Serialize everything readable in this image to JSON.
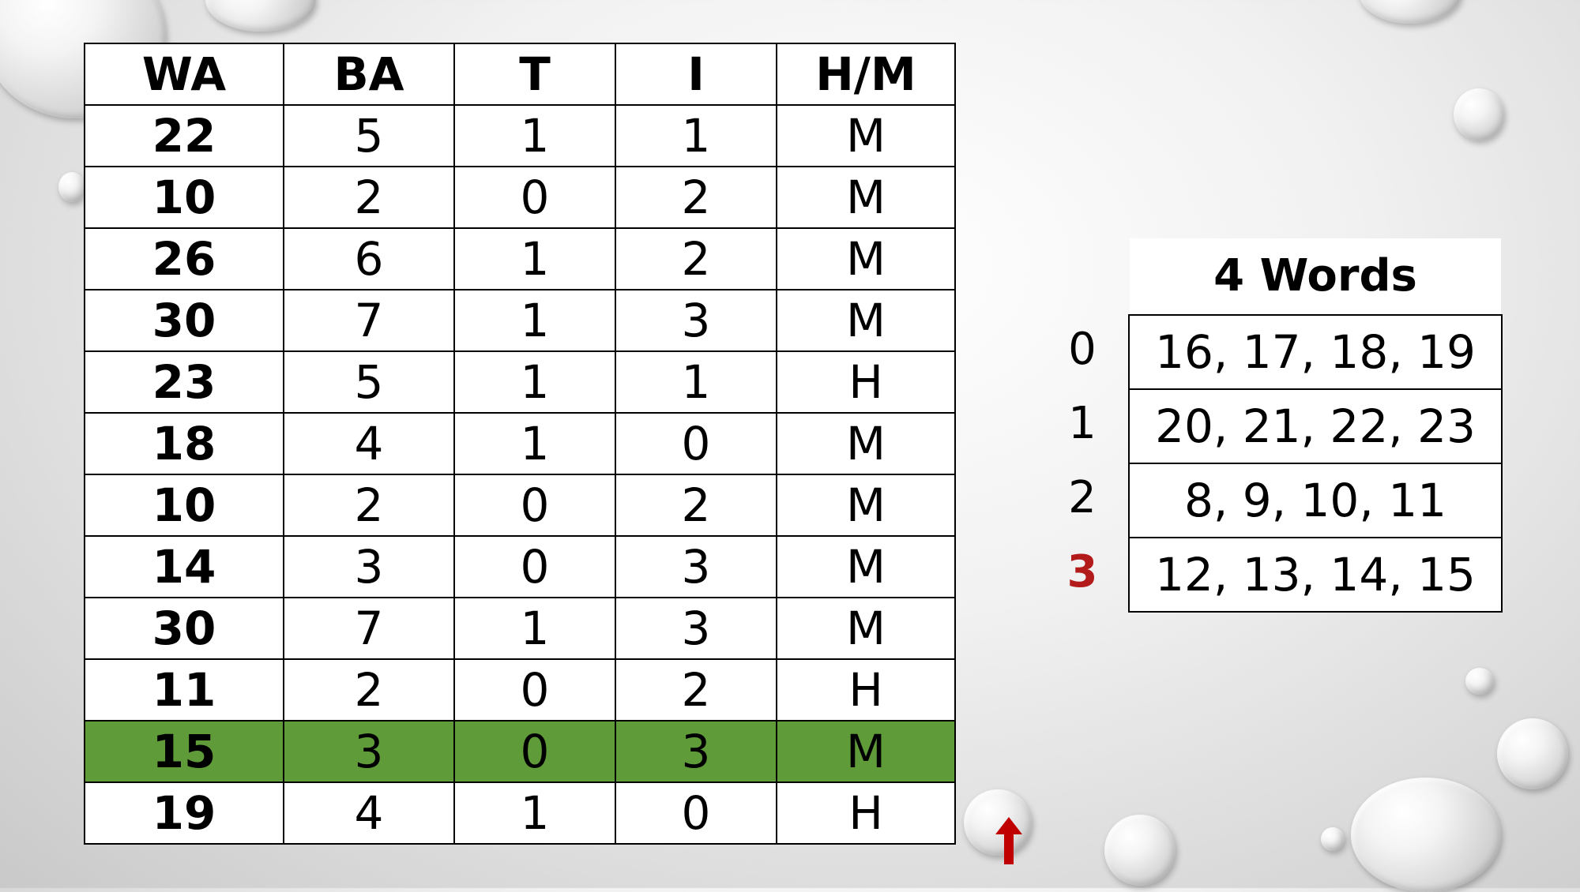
{
  "main_table": {
    "headers": [
      "WA",
      "BA",
      "T",
      "I",
      "H/M"
    ],
    "rows": [
      [
        "22",
        "5",
        "1",
        "1",
        "M"
      ],
      [
        "10",
        "2",
        "0",
        "2",
        "M"
      ],
      [
        "26",
        "6",
        "1",
        "2",
        "M"
      ],
      [
        "30",
        "7",
        "1",
        "3",
        "M"
      ],
      [
        "23",
        "5",
        "1",
        "1",
        "H"
      ],
      [
        "18",
        "4",
        "1",
        "0",
        "M"
      ],
      [
        "10",
        "2",
        "0",
        "2",
        "M"
      ],
      [
        "14",
        "3",
        "0",
        "3",
        "M"
      ],
      [
        "30",
        "7",
        "1",
        "3",
        "M"
      ],
      [
        "11",
        "2",
        "0",
        "2",
        "H"
      ],
      [
        "15",
        "3",
        "0",
        "3",
        "M"
      ],
      [
        "19",
        "4",
        "1",
        "0",
        "H"
      ]
    ],
    "highlighted_row": 10,
    "highlight_color": "#609b3a"
  },
  "words_table": {
    "title": "4 Words",
    "rows": [
      {
        "index": "0",
        "words": "16, 17, 18, 19"
      },
      {
        "index": "1",
        "words": "20, 21, 22, 23"
      },
      {
        "index": "2",
        "words": "8, 9, 10, 11"
      },
      {
        "index": "3",
        "words": "12, 13, 14, 15"
      }
    ],
    "active_index": 3,
    "active_color": "#b31b1b"
  },
  "arrow": {
    "icon": "up-arrow-icon",
    "color": "#c00000"
  }
}
